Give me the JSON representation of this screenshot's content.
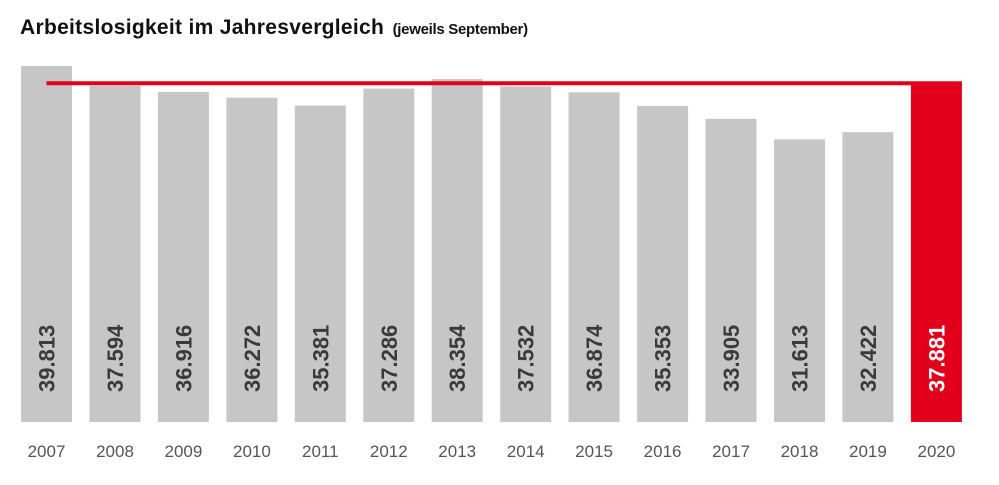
{
  "chart_data": {
    "type": "bar",
    "title": "Arbeitslosigkeit im Jahresvergleich",
    "subtitle": "(jeweils September)",
    "categories": [
      "2007",
      "2008",
      "2009",
      "2010",
      "2011",
      "2012",
      "2013",
      "2014",
      "2015",
      "2016",
      "2017",
      "2018",
      "2019",
      "2020"
    ],
    "values": [
      39813,
      37594,
      36916,
      36272,
      35381,
      37286,
      38354,
      37532,
      36874,
      35353,
      33905,
      31613,
      32422,
      37881
    ],
    "value_labels": [
      "39.813",
      "37.594",
      "36.916",
      "36.272",
      "35.381",
      "37.286",
      "38.354",
      "37.532",
      "36.874",
      "35.353",
      "33.905",
      "31.613",
      "32.422",
      "37.881"
    ],
    "highlight_index": 13,
    "reference_line_value": 37881,
    "colors": {
      "bar": "#c6c6c6",
      "highlight": "#e2001a",
      "line": "#e2001a",
      "label_dark": "#3a3a3a",
      "label_light": "#ffffff",
      "tick": "#555555"
    },
    "grid": false,
    "legend": "none"
  }
}
